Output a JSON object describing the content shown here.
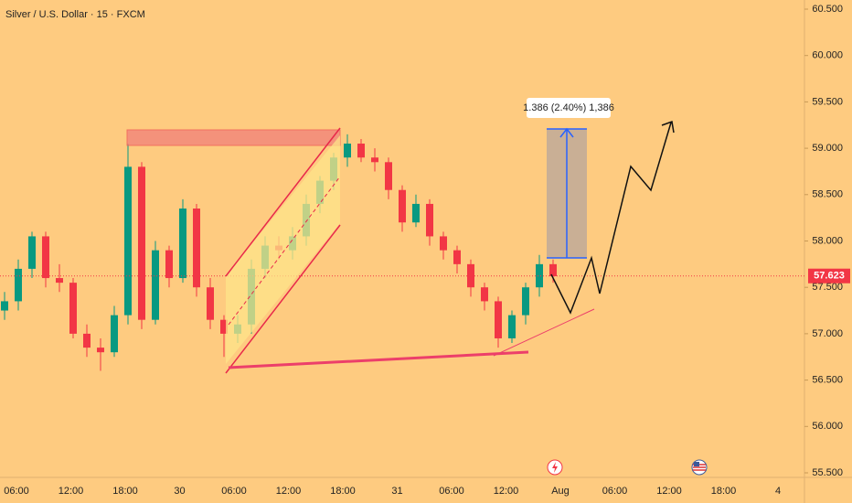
{
  "chart_data": {
    "type": "candlestick",
    "title": "Silver / U.S. Dollar · 15 · FXCM",
    "open": [
      57.25,
      57.35,
      57.7,
      58.05,
      57.6,
      57.55,
      57.0,
      56.85,
      56.8,
      57.2,
      58.8,
      57.15,
      57.9,
      57.6,
      58.35,
      57.5,
      57.15,
      57.0,
      57.1,
      57.7,
      57.95,
      57.9,
      58.05,
      58.4,
      58.65,
      58.9,
      59.05,
      58.9,
      58.85,
      58.55,
      58.2,
      58.4,
      58.05,
      57.9,
      57.75,
      57.5,
      57.35,
      56.95,
      57.2,
      57.5,
      57.75
    ],
    "high": [
      57.45,
      57.8,
      58.1,
      58.1,
      57.75,
      57.6,
      57.1,
      56.95,
      57.3,
      59.05,
      58.85,
      58.0,
      57.95,
      58.45,
      58.4,
      57.6,
      57.2,
      57.2,
      57.8,
      58.05,
      58.05,
      58.15,
      58.5,
      58.7,
      58.95,
      59.15,
      59.1,
      59.0,
      58.9,
      58.6,
      58.5,
      58.45,
      58.1,
      57.95,
      57.8,
      57.55,
      57.4,
      57.25,
      57.55,
      57.85,
      57.8
    ],
    "low": [
      57.15,
      57.25,
      57.6,
      57.5,
      57.45,
      56.95,
      56.75,
      56.6,
      56.75,
      57.1,
      57.05,
      57.1,
      57.5,
      57.55,
      57.4,
      57.05,
      56.75,
      56.9,
      57.0,
      57.6,
      57.8,
      57.8,
      57.95,
      58.3,
      58.55,
      58.8,
      58.85,
      58.75,
      58.45,
      58.1,
      58.15,
      57.95,
      57.8,
      57.65,
      57.4,
      57.25,
      56.85,
      56.9,
      57.1,
      57.4,
      57.55
    ],
    "close": [
      57.35,
      57.7,
      58.05,
      57.6,
      57.55,
      57.0,
      56.85,
      56.8,
      57.2,
      58.8,
      57.15,
      57.9,
      57.6,
      58.35,
      57.5,
      57.15,
      57.0,
      57.1,
      57.7,
      57.95,
      57.9,
      58.05,
      58.4,
      58.65,
      58.9,
      59.05,
      58.9,
      58.85,
      58.55,
      58.2,
      58.4,
      58.05,
      57.9,
      57.75,
      57.5,
      57.35,
      56.95,
      57.2,
      57.5,
      57.75,
      57.62
    ],
    "up_color": "#089981",
    "down_color": "#f23645",
    "ylim": [
      55.5,
      60.5
    ],
    "yticks": [
      {
        "value": 55.5,
        "label": "55.500"
      },
      {
        "value": 56,
        "label": "56.000"
      },
      {
        "value": 56.5,
        "label": "56.500"
      },
      {
        "value": 57,
        "label": "57.000"
      },
      {
        "value": 57.5,
        "label": "57.500"
      },
      {
        "value": 58,
        "label": "58.000"
      },
      {
        "value": 58.5,
        "label": "58.500"
      },
      {
        "value": 59,
        "label": "59.000"
      },
      {
        "value": 59.5,
        "label": "59.500"
      },
      {
        "value": 60,
        "label": "60.000"
      },
      {
        "value": 60.5,
        "label": "60.500"
      }
    ],
    "xticks": [
      "06:00",
      "12:00",
      "18:00",
      "30",
      "06:00",
      "12:00",
      "18:00",
      "31",
      "06:00",
      "12:00",
      "Aug",
      "06:00",
      "12:00",
      "18:00",
      "4"
    ],
    "current_price": 57.623,
    "annotation": "1.386 (2.40%) 1,386"
  }
}
